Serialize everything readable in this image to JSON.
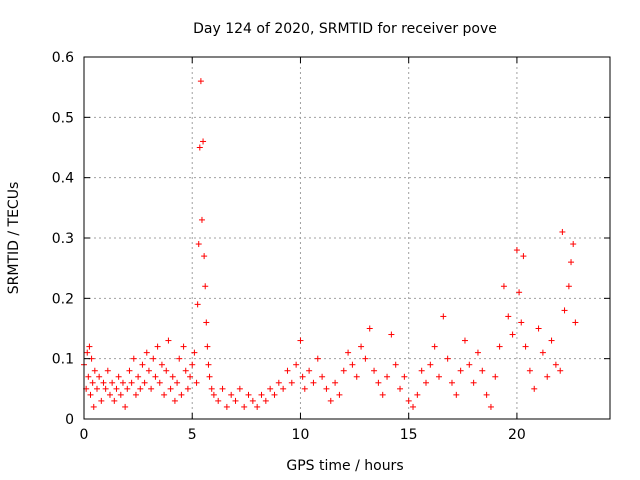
{
  "chart_data": {
    "type": "scatter",
    "title": "Day 124 of 2020, SRMTID for receiver pove",
    "xlabel": "GPS time / hours",
    "ylabel": "SRMTID / TECUs",
    "xlim": [
      0,
      24.3
    ],
    "ylim": [
      0,
      0.6
    ],
    "xticks": [
      0,
      5,
      10,
      15,
      20
    ],
    "xtick_labels": [
      "0",
      "5",
      "10",
      "15",
      "20"
    ],
    "yticks": [
      0,
      0.1,
      0.2,
      0.3,
      0.4,
      0.5,
      0.6
    ],
    "ytick_labels": [
      "0",
      "0.1",
      "0.2",
      "0.3",
      "0.4",
      "0.5",
      "0.6"
    ],
    "grid": true,
    "marker": "plus",
    "color": "#ff0000",
    "series": [
      {
        "name": "SRMTID",
        "points": [
          [
            0.0,
            0.09
          ],
          [
            0.1,
            0.05
          ],
          [
            0.15,
            0.11
          ],
          [
            0.2,
            0.07
          ],
          [
            0.25,
            0.12
          ],
          [
            0.3,
            0.04
          ],
          [
            0.35,
            0.1
          ],
          [
            0.4,
            0.06
          ],
          [
            0.45,
            0.02
          ],
          [
            0.5,
            0.08
          ],
          [
            0.6,
            0.05
          ],
          [
            0.7,
            0.07
          ],
          [
            0.8,
            0.03
          ],
          [
            0.9,
            0.06
          ],
          [
            1.0,
            0.05
          ],
          [
            1.1,
            0.08
          ],
          [
            1.2,
            0.04
          ],
          [
            1.3,
            0.06
          ],
          [
            1.4,
            0.03
          ],
          [
            1.5,
            0.05
          ],
          [
            1.6,
            0.07
          ],
          [
            1.7,
            0.04
          ],
          [
            1.8,
            0.06
          ],
          [
            1.9,
            0.02
          ],
          [
            2.0,
            0.05
          ],
          [
            2.1,
            0.08
          ],
          [
            2.2,
            0.06
          ],
          [
            2.3,
            0.1
          ],
          [
            2.4,
            0.04
          ],
          [
            2.5,
            0.07
          ],
          [
            2.6,
            0.05
          ],
          [
            2.7,
            0.09
          ],
          [
            2.8,
            0.06
          ],
          [
            2.9,
            0.11
          ],
          [
            3.0,
            0.08
          ],
          [
            3.1,
            0.05
          ],
          [
            3.2,
            0.1
          ],
          [
            3.3,
            0.07
          ],
          [
            3.4,
            0.12
          ],
          [
            3.5,
            0.06
          ],
          [
            3.6,
            0.09
          ],
          [
            3.7,
            0.04
          ],
          [
            3.8,
            0.08
          ],
          [
            3.9,
            0.13
          ],
          [
            4.0,
            0.05
          ],
          [
            4.1,
            0.07
          ],
          [
            4.2,
            0.03
          ],
          [
            4.3,
            0.06
          ],
          [
            4.4,
            0.1
          ],
          [
            4.5,
            0.04
          ],
          [
            4.6,
            0.12
          ],
          [
            4.7,
            0.08
          ],
          [
            4.8,
            0.05
          ],
          [
            4.9,
            0.07
          ],
          [
            5.0,
            0.09
          ],
          [
            5.1,
            0.11
          ],
          [
            5.2,
            0.06
          ],
          [
            5.25,
            0.19
          ],
          [
            5.3,
            0.29
          ],
          [
            5.35,
            0.45
          ],
          [
            5.4,
            0.56
          ],
          [
            5.45,
            0.33
          ],
          [
            5.5,
            0.46
          ],
          [
            5.55,
            0.27
          ],
          [
            5.6,
            0.22
          ],
          [
            5.65,
            0.16
          ],
          [
            5.7,
            0.12
          ],
          [
            5.75,
            0.09
          ],
          [
            5.8,
            0.07
          ],
          [
            5.9,
            0.05
          ],
          [
            6.0,
            0.04
          ],
          [
            6.2,
            0.03
          ],
          [
            6.4,
            0.05
          ],
          [
            6.6,
            0.02
          ],
          [
            6.8,
            0.04
          ],
          [
            7.0,
            0.03
          ],
          [
            7.2,
            0.05
          ],
          [
            7.4,
            0.02
          ],
          [
            7.6,
            0.04
          ],
          [
            7.8,
            0.03
          ],
          [
            8.0,
            0.02
          ],
          [
            8.2,
            0.04
          ],
          [
            8.4,
            0.03
          ],
          [
            8.6,
            0.05
          ],
          [
            8.8,
            0.04
          ],
          [
            9.0,
            0.06
          ],
          [
            9.2,
            0.05
          ],
          [
            9.4,
            0.08
          ],
          [
            9.6,
            0.06
          ],
          [
            9.8,
            0.09
          ],
          [
            10.0,
            0.13
          ],
          [
            10.1,
            0.07
          ],
          [
            10.2,
            0.05
          ],
          [
            10.4,
            0.08
          ],
          [
            10.6,
            0.06
          ],
          [
            10.8,
            0.1
          ],
          [
            11.0,
            0.07
          ],
          [
            11.2,
            0.05
          ],
          [
            11.4,
            0.03
          ],
          [
            11.6,
            0.06
          ],
          [
            11.8,
            0.04
          ],
          [
            12.0,
            0.08
          ],
          [
            12.2,
            0.11
          ],
          [
            12.4,
            0.09
          ],
          [
            12.6,
            0.07
          ],
          [
            12.8,
            0.12
          ],
          [
            13.0,
            0.1
          ],
          [
            13.2,
            0.15
          ],
          [
            13.4,
            0.08
          ],
          [
            13.6,
            0.06
          ],
          [
            13.8,
            0.04
          ],
          [
            14.0,
            0.07
          ],
          [
            14.2,
            0.14
          ],
          [
            14.4,
            0.09
          ],
          [
            14.6,
            0.05
          ],
          [
            14.8,
            0.07
          ],
          [
            15.0,
            0.03
          ],
          [
            15.2,
            0.02
          ],
          [
            15.4,
            0.04
          ],
          [
            15.6,
            0.08
          ],
          [
            15.8,
            0.06
          ],
          [
            16.0,
            0.09
          ],
          [
            16.2,
            0.12
          ],
          [
            16.4,
            0.07
          ],
          [
            16.6,
            0.17
          ],
          [
            16.8,
            0.1
          ],
          [
            17.0,
            0.06
          ],
          [
            17.2,
            0.04
          ],
          [
            17.4,
            0.08
          ],
          [
            17.6,
            0.13
          ],
          [
            17.8,
            0.09
          ],
          [
            18.0,
            0.06
          ],
          [
            18.2,
            0.11
          ],
          [
            18.4,
            0.08
          ],
          [
            18.6,
            0.04
          ],
          [
            18.8,
            0.02
          ],
          [
            19.0,
            0.07
          ],
          [
            19.2,
            0.12
          ],
          [
            19.4,
            0.22
          ],
          [
            19.6,
            0.17
          ],
          [
            19.8,
            0.14
          ],
          [
            20.0,
            0.28
          ],
          [
            20.1,
            0.21
          ],
          [
            20.2,
            0.16
          ],
          [
            20.3,
            0.27
          ],
          [
            20.4,
            0.12
          ],
          [
            20.6,
            0.08
          ],
          [
            20.8,
            0.05
          ],
          [
            21.0,
            0.15
          ],
          [
            21.2,
            0.11
          ],
          [
            21.4,
            0.07
          ],
          [
            21.6,
            0.13
          ],
          [
            21.8,
            0.09
          ],
          [
            22.0,
            0.08
          ],
          [
            22.1,
            0.31
          ],
          [
            22.2,
            0.18
          ],
          [
            22.4,
            0.22
          ],
          [
            22.5,
            0.26
          ],
          [
            22.6,
            0.29
          ],
          [
            22.7,
            0.16
          ]
        ]
      }
    ]
  }
}
